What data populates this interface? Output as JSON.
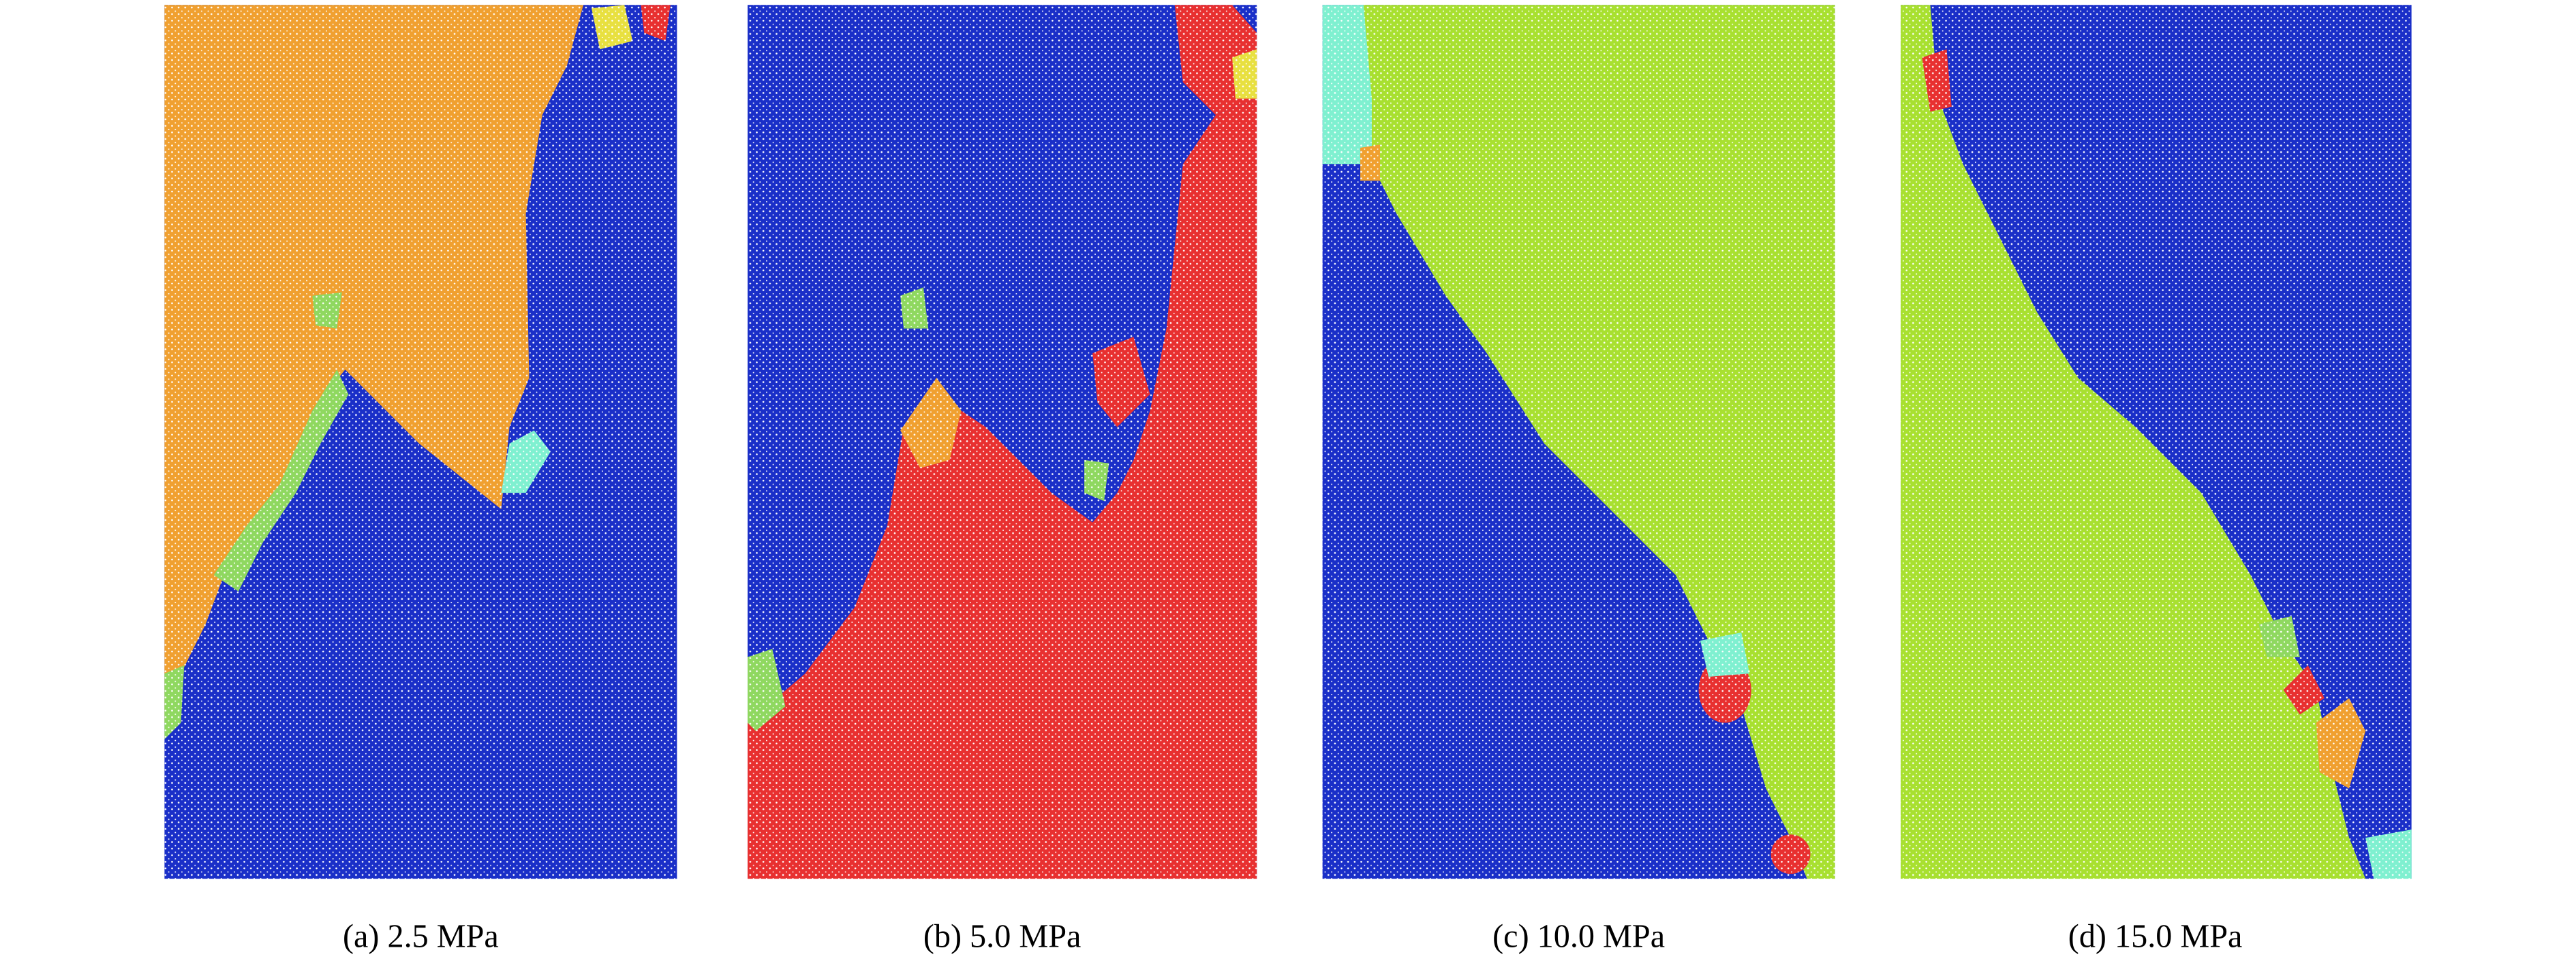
{
  "captions": [
    "(a) 2.5 MPa",
    "(b) 5.0 MPa",
    "(c) 10.0 MPa",
    "(d) 15.0 MPa"
  ]
}
